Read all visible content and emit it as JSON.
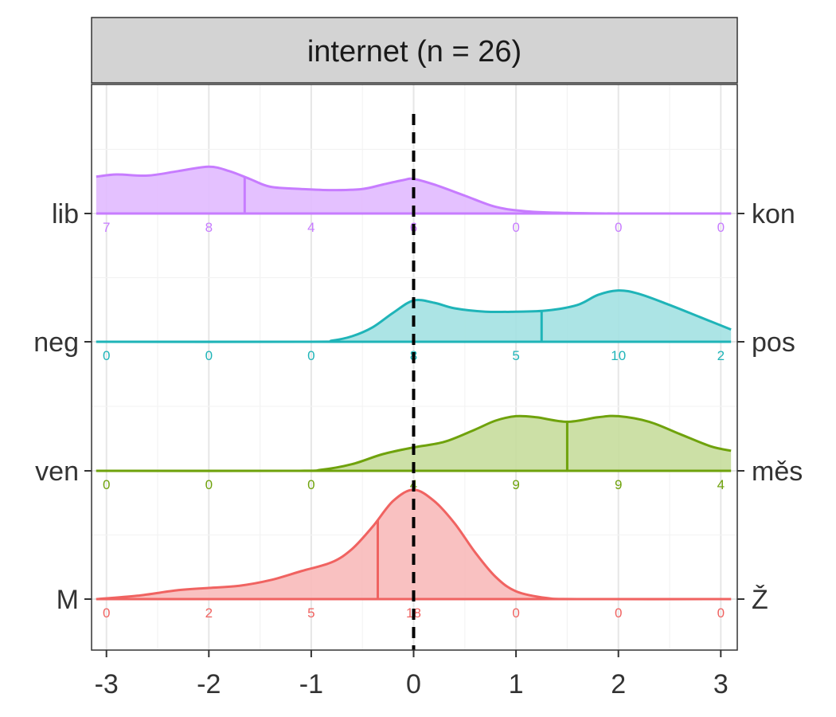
{
  "chart_data": {
    "type": "density_ridgeline",
    "facet_title": "internet (n = 26)",
    "xlim": [
      -3,
      3
    ],
    "x_ticks": [
      -3,
      -2,
      -1,
      0,
      1,
      2,
      3
    ],
    "x_tick_labels": [
      "-3",
      "-2",
      "-1",
      "0",
      "1",
      "2",
      "3"
    ],
    "reference_line_x": 0,
    "count_positions": [
      -3,
      -2,
      -1,
      0,
      1,
      2,
      3
    ],
    "series": [
      {
        "left_label": "lib",
        "right_label": "kon",
        "color": "#C77CFF",
        "fill": "#E1BAFF",
        "mean": -1.65,
        "counts": [
          "7",
          "8",
          "4",
          "6",
          "0",
          "0",
          "0"
        ],
        "density": [
          [
            -3.1,
            0.33
          ],
          [
            -2.9,
            0.35
          ],
          [
            -2.6,
            0.34
          ],
          [
            -2.3,
            0.38
          ],
          [
            -2.0,
            0.42
          ],
          [
            -1.8,
            0.38
          ],
          [
            -1.6,
            0.31
          ],
          [
            -1.4,
            0.24
          ],
          [
            -1.1,
            0.22
          ],
          [
            -0.8,
            0.21
          ],
          [
            -0.5,
            0.22
          ],
          [
            -0.3,
            0.26
          ],
          [
            -0.1,
            0.3
          ],
          [
            0.0,
            0.31
          ],
          [
            0.2,
            0.26
          ],
          [
            0.5,
            0.16
          ],
          [
            0.8,
            0.06
          ],
          [
            1.1,
            0.02
          ],
          [
            1.5,
            0.005
          ],
          [
            2.0,
            0.0
          ],
          [
            3.1,
            0.0
          ]
        ]
      },
      {
        "left_label": "neg",
        "right_label": "pos",
        "color": "#1FB4B8",
        "fill": "#A3E1E2",
        "mean": 1.25,
        "counts": [
          "0",
          "0",
          "0",
          "8",
          "5",
          "10",
          "2"
        ],
        "density": [
          [
            -3.1,
            0.0
          ],
          [
            -1.0,
            0.0
          ],
          [
            -0.8,
            0.01
          ],
          [
            -0.6,
            0.05
          ],
          [
            -0.4,
            0.13
          ],
          [
            -0.2,
            0.26
          ],
          [
            0.0,
            0.37
          ],
          [
            0.2,
            0.35
          ],
          [
            0.4,
            0.3
          ],
          [
            0.7,
            0.27
          ],
          [
            1.0,
            0.27
          ],
          [
            1.3,
            0.28
          ],
          [
            1.6,
            0.33
          ],
          [
            1.8,
            0.42
          ],
          [
            2.0,
            0.46
          ],
          [
            2.2,
            0.43
          ],
          [
            2.5,
            0.33
          ],
          [
            2.8,
            0.22
          ],
          [
            3.1,
            0.11
          ]
        ]
      },
      {
        "left_label": "ven",
        "right_label": "měs",
        "color": "#6FA20C",
        "fill": "#C6DD9C",
        "mean": 1.5,
        "counts": [
          "0",
          "0",
          "0",
          "4",
          "9",
          "9",
          "4"
        ],
        "density": [
          [
            -3.1,
            0.0
          ],
          [
            -1.2,
            0.0
          ],
          [
            -0.9,
            0.01
          ],
          [
            -0.6,
            0.06
          ],
          [
            -0.3,
            0.15
          ],
          [
            0.0,
            0.21
          ],
          [
            0.3,
            0.26
          ],
          [
            0.6,
            0.37
          ],
          [
            0.8,
            0.45
          ],
          [
            1.0,
            0.49
          ],
          [
            1.2,
            0.48
          ],
          [
            1.5,
            0.44
          ],
          [
            1.8,
            0.48
          ],
          [
            2.0,
            0.49
          ],
          [
            2.3,
            0.44
          ],
          [
            2.6,
            0.33
          ],
          [
            2.9,
            0.22
          ],
          [
            3.1,
            0.18
          ]
        ]
      },
      {
        "left_label": "M",
        "right_label": "Ž",
        "color": "#F06361",
        "fill": "#F8BABA",
        "mean": -0.35,
        "counts": [
          "0",
          "2",
          "5",
          "18",
          "0",
          "0",
          "0"
        ],
        "density": [
          [
            -3.1,
            0.0
          ],
          [
            -2.7,
            0.03
          ],
          [
            -2.3,
            0.08
          ],
          [
            -2.0,
            0.1
          ],
          [
            -1.7,
            0.12
          ],
          [
            -1.4,
            0.17
          ],
          [
            -1.1,
            0.25
          ],
          [
            -0.8,
            0.33
          ],
          [
            -0.6,
            0.45
          ],
          [
            -0.4,
            0.65
          ],
          [
            -0.2,
            0.88
          ],
          [
            0.0,
            0.98
          ],
          [
            0.2,
            0.88
          ],
          [
            0.4,
            0.68
          ],
          [
            0.6,
            0.42
          ],
          [
            0.8,
            0.2
          ],
          [
            1.0,
            0.07
          ],
          [
            1.3,
            0.01
          ],
          [
            1.6,
            0.0
          ],
          [
            3.1,
            0.0
          ]
        ]
      }
    ],
    "grid": true,
    "colors": {
      "strip_fill": "#D3D3D3",
      "panel_border": "#333333",
      "grid_major": "#E6E6E6",
      "grid_minor": "#F3F3F3",
      "axis_text": "#333333",
      "reference_line": "#000000"
    }
  }
}
